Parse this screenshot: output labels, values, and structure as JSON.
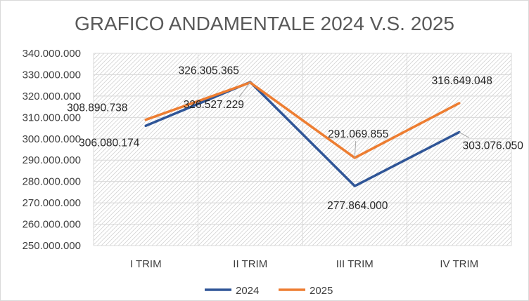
{
  "chart_data": {
    "type": "line",
    "title": "GRAFICO ANDAMENTALE 2024 V.S. 2025",
    "xlabel": "",
    "ylabel": "",
    "categories": [
      "I TRIM",
      "II TRIM",
      "III TRIM",
      "IV TRIM"
    ],
    "ylim": [
      250000000,
      340000000
    ],
    "yticks": [
      250000000,
      260000000,
      270000000,
      280000000,
      290000000,
      300000000,
      310000000,
      320000000,
      330000000,
      340000000
    ],
    "ytick_labels": [
      "250.000.000",
      "260.000.000",
      "270.000.000",
      "280.000.000",
      "290.000.000",
      "300.000.000",
      "310.000.000",
      "320.000.000",
      "330.000.000",
      "340.000.000"
    ],
    "grid": true,
    "legend_position": "bottom",
    "series": [
      {
        "name": "2024",
        "color": "#2f5597",
        "values": [
          306080174,
          326527229,
          277864000,
          303076050
        ],
        "labels": [
          "306.080.174",
          "326.527.229",
          "277.864.000",
          "303.076.050"
        ]
      },
      {
        "name": "2025",
        "color": "#ed7d31",
        "values": [
          308890738,
          326305365,
          291069855,
          316649048
        ],
        "labels": [
          "308.890.738",
          "326.305.365",
          "291.069.855",
          "316.649.048"
        ]
      }
    ]
  }
}
